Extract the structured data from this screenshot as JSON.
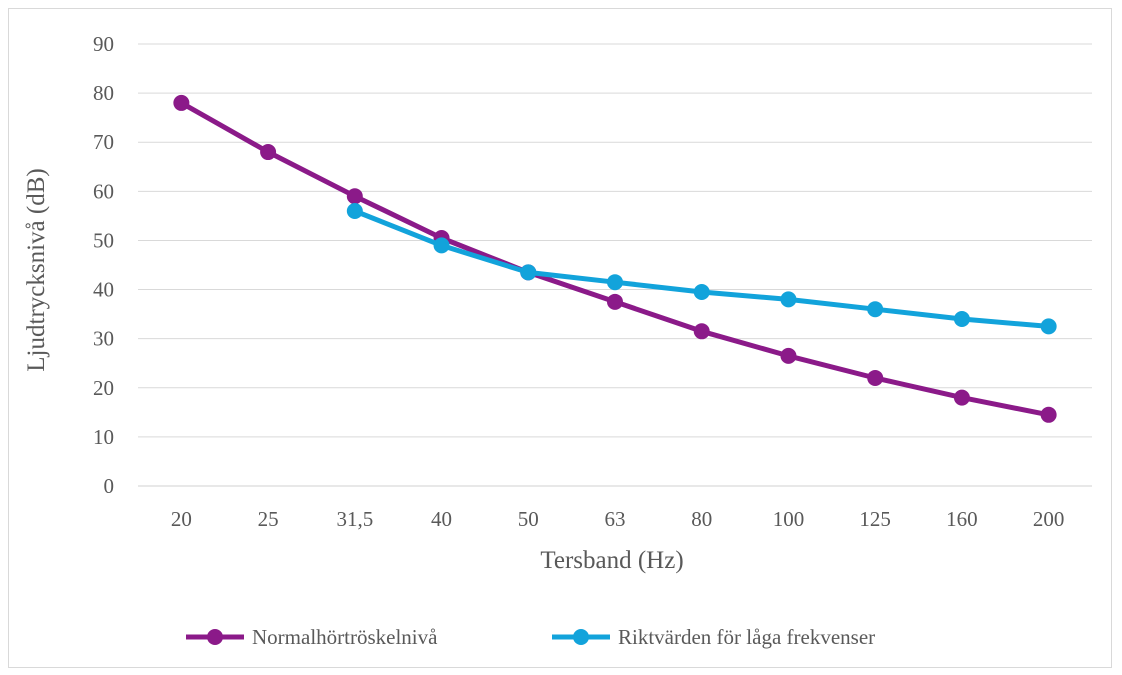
{
  "chart_data": {
    "type": "line",
    "title": "",
    "xlabel": "Tersband (Hz)",
    "ylabel": "Ljudtrycksnivå (dB)",
    "categories": [
      "20",
      "25",
      "31,5",
      "40",
      "50",
      "63",
      "80",
      "100",
      "125",
      "160",
      "200"
    ],
    "ylim": [
      0,
      90
    ],
    "yticks": [
      "0",
      "10",
      "20",
      "30",
      "40",
      "50",
      "60",
      "70",
      "80",
      "90"
    ],
    "grid": true,
    "legend_position": "bottom",
    "series": [
      {
        "name": "Normalhörtröskelnivå",
        "color": "#8B1A89",
        "values": [
          78,
          68,
          59,
          50.5,
          43.5,
          37.5,
          31.5,
          26.5,
          22,
          18,
          14.5
        ]
      },
      {
        "name": "Riktvärden för låga frekvenser",
        "color": "#12A3DB",
        "values": [
          null,
          null,
          56,
          49,
          43.5,
          41.5,
          39.5,
          38,
          36,
          34,
          32.5
        ]
      }
    ]
  }
}
